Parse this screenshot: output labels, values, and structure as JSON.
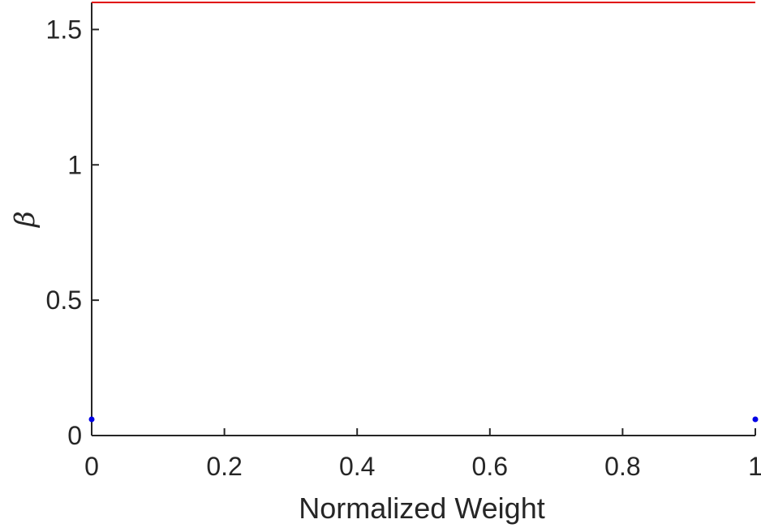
{
  "chart_data": {
    "type": "scatter",
    "title": "",
    "xlabel": "Normalized Weight",
    "ylabel": "β",
    "xlim": [
      0,
      1
    ],
    "ylim": [
      0,
      1.6
    ],
    "x_ticks": [
      0,
      0.2,
      0.4,
      0.6,
      0.8,
      1
    ],
    "x_tick_labels": [
      "0",
      "0.2",
      "0.4",
      "0.6",
      "0.8",
      "1"
    ],
    "y_ticks": [
      0,
      0.5,
      1,
      1.5
    ],
    "y_tick_labels": [
      "0",
      "0.5",
      "1",
      "1.5"
    ],
    "grid": false,
    "series": [
      {
        "type": "line",
        "color": "#e00000",
        "x": [
          0,
          1
        ],
        "y": [
          1.6,
          1.6
        ]
      },
      {
        "type": "scatter",
        "color": "#0000e6",
        "x": [
          0,
          1
        ],
        "y": [
          0.06,
          0.06
        ]
      }
    ]
  }
}
